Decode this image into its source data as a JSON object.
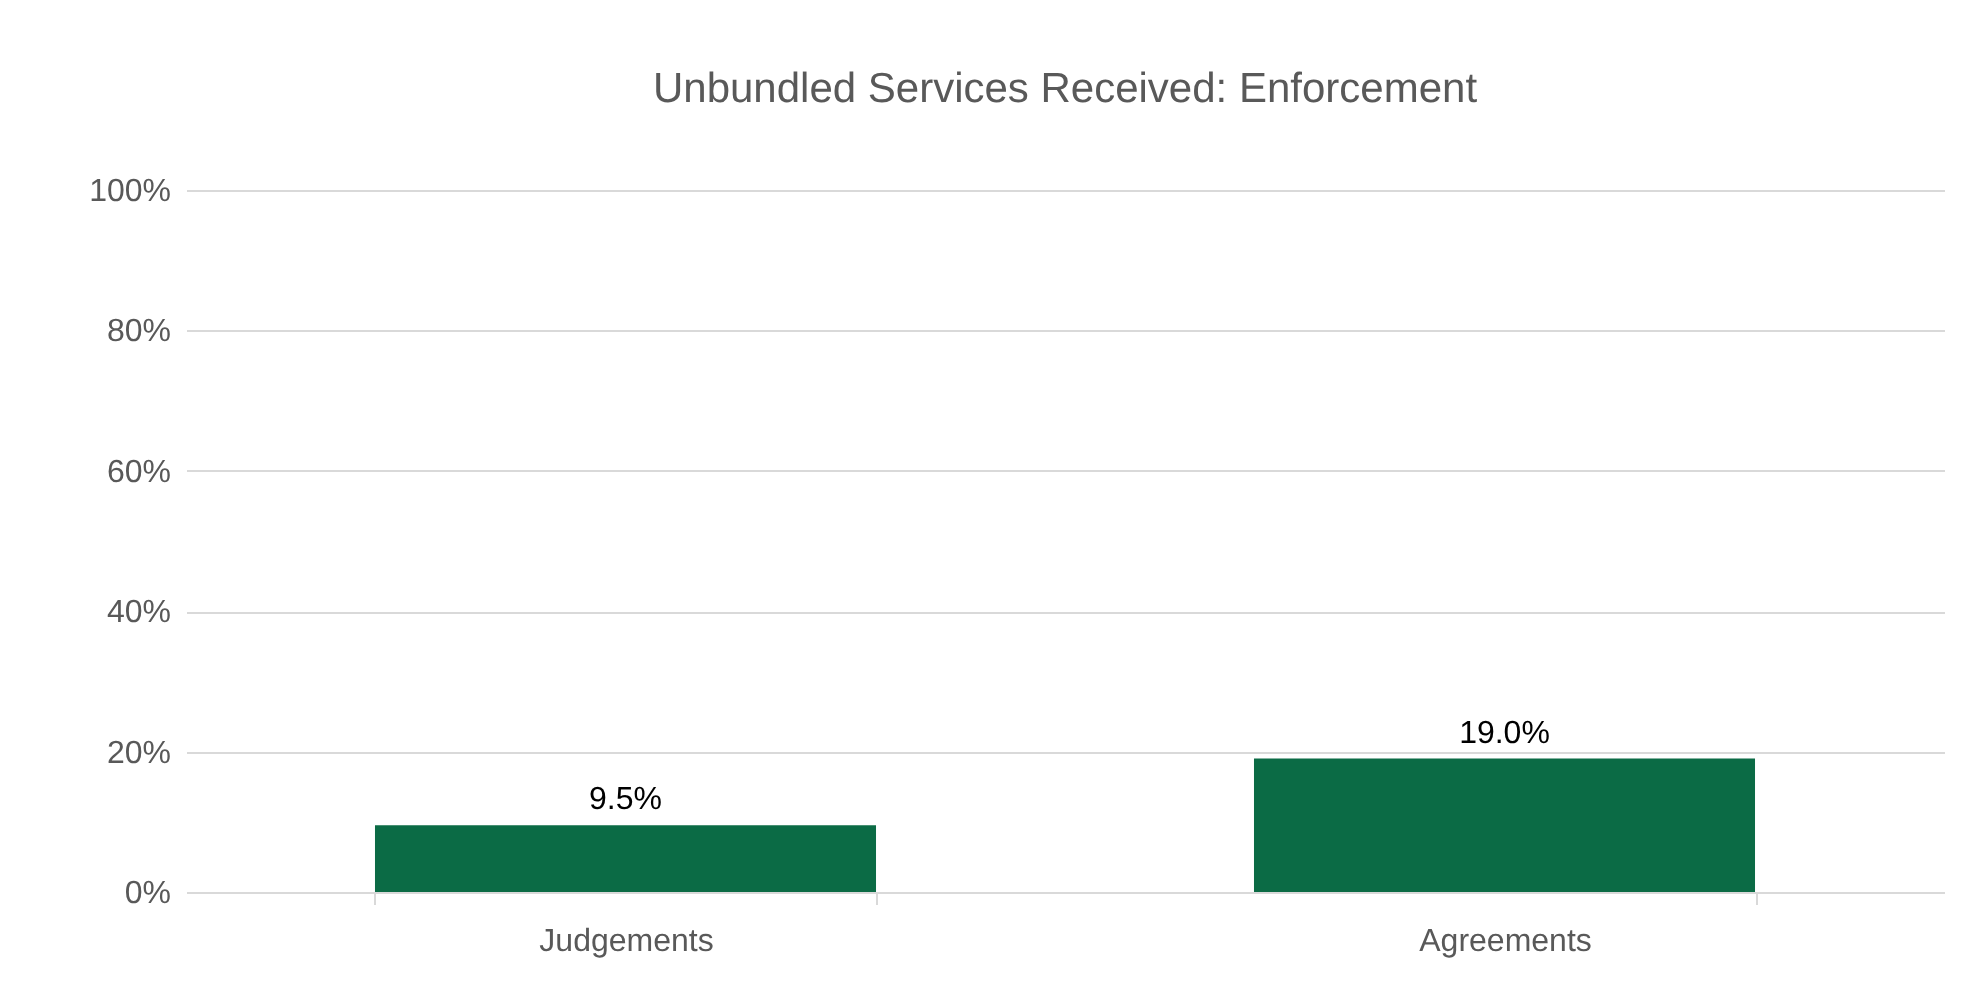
{
  "chart_data": {
    "type": "bar",
    "title": "Unbundled Services Received: Enforcement",
    "categories": [
      "Judgements",
      "Agreements"
    ],
    "values": [
      9.5,
      19.0
    ],
    "value_labels": [
      "9.5%",
      "19.0%"
    ],
    "color": "#0b6b45",
    "ylim": [
      0,
      100
    ],
    "yticks": [
      {
        "value": 0,
        "label": "0%"
      },
      {
        "value": 20,
        "label": "20%"
      },
      {
        "value": 40,
        "label": "40%"
      },
      {
        "value": 60,
        "label": "60%"
      },
      {
        "value": 80,
        "label": "80%"
      },
      {
        "value": 100,
        "label": "100%"
      }
    ],
    "grid": "y"
  }
}
